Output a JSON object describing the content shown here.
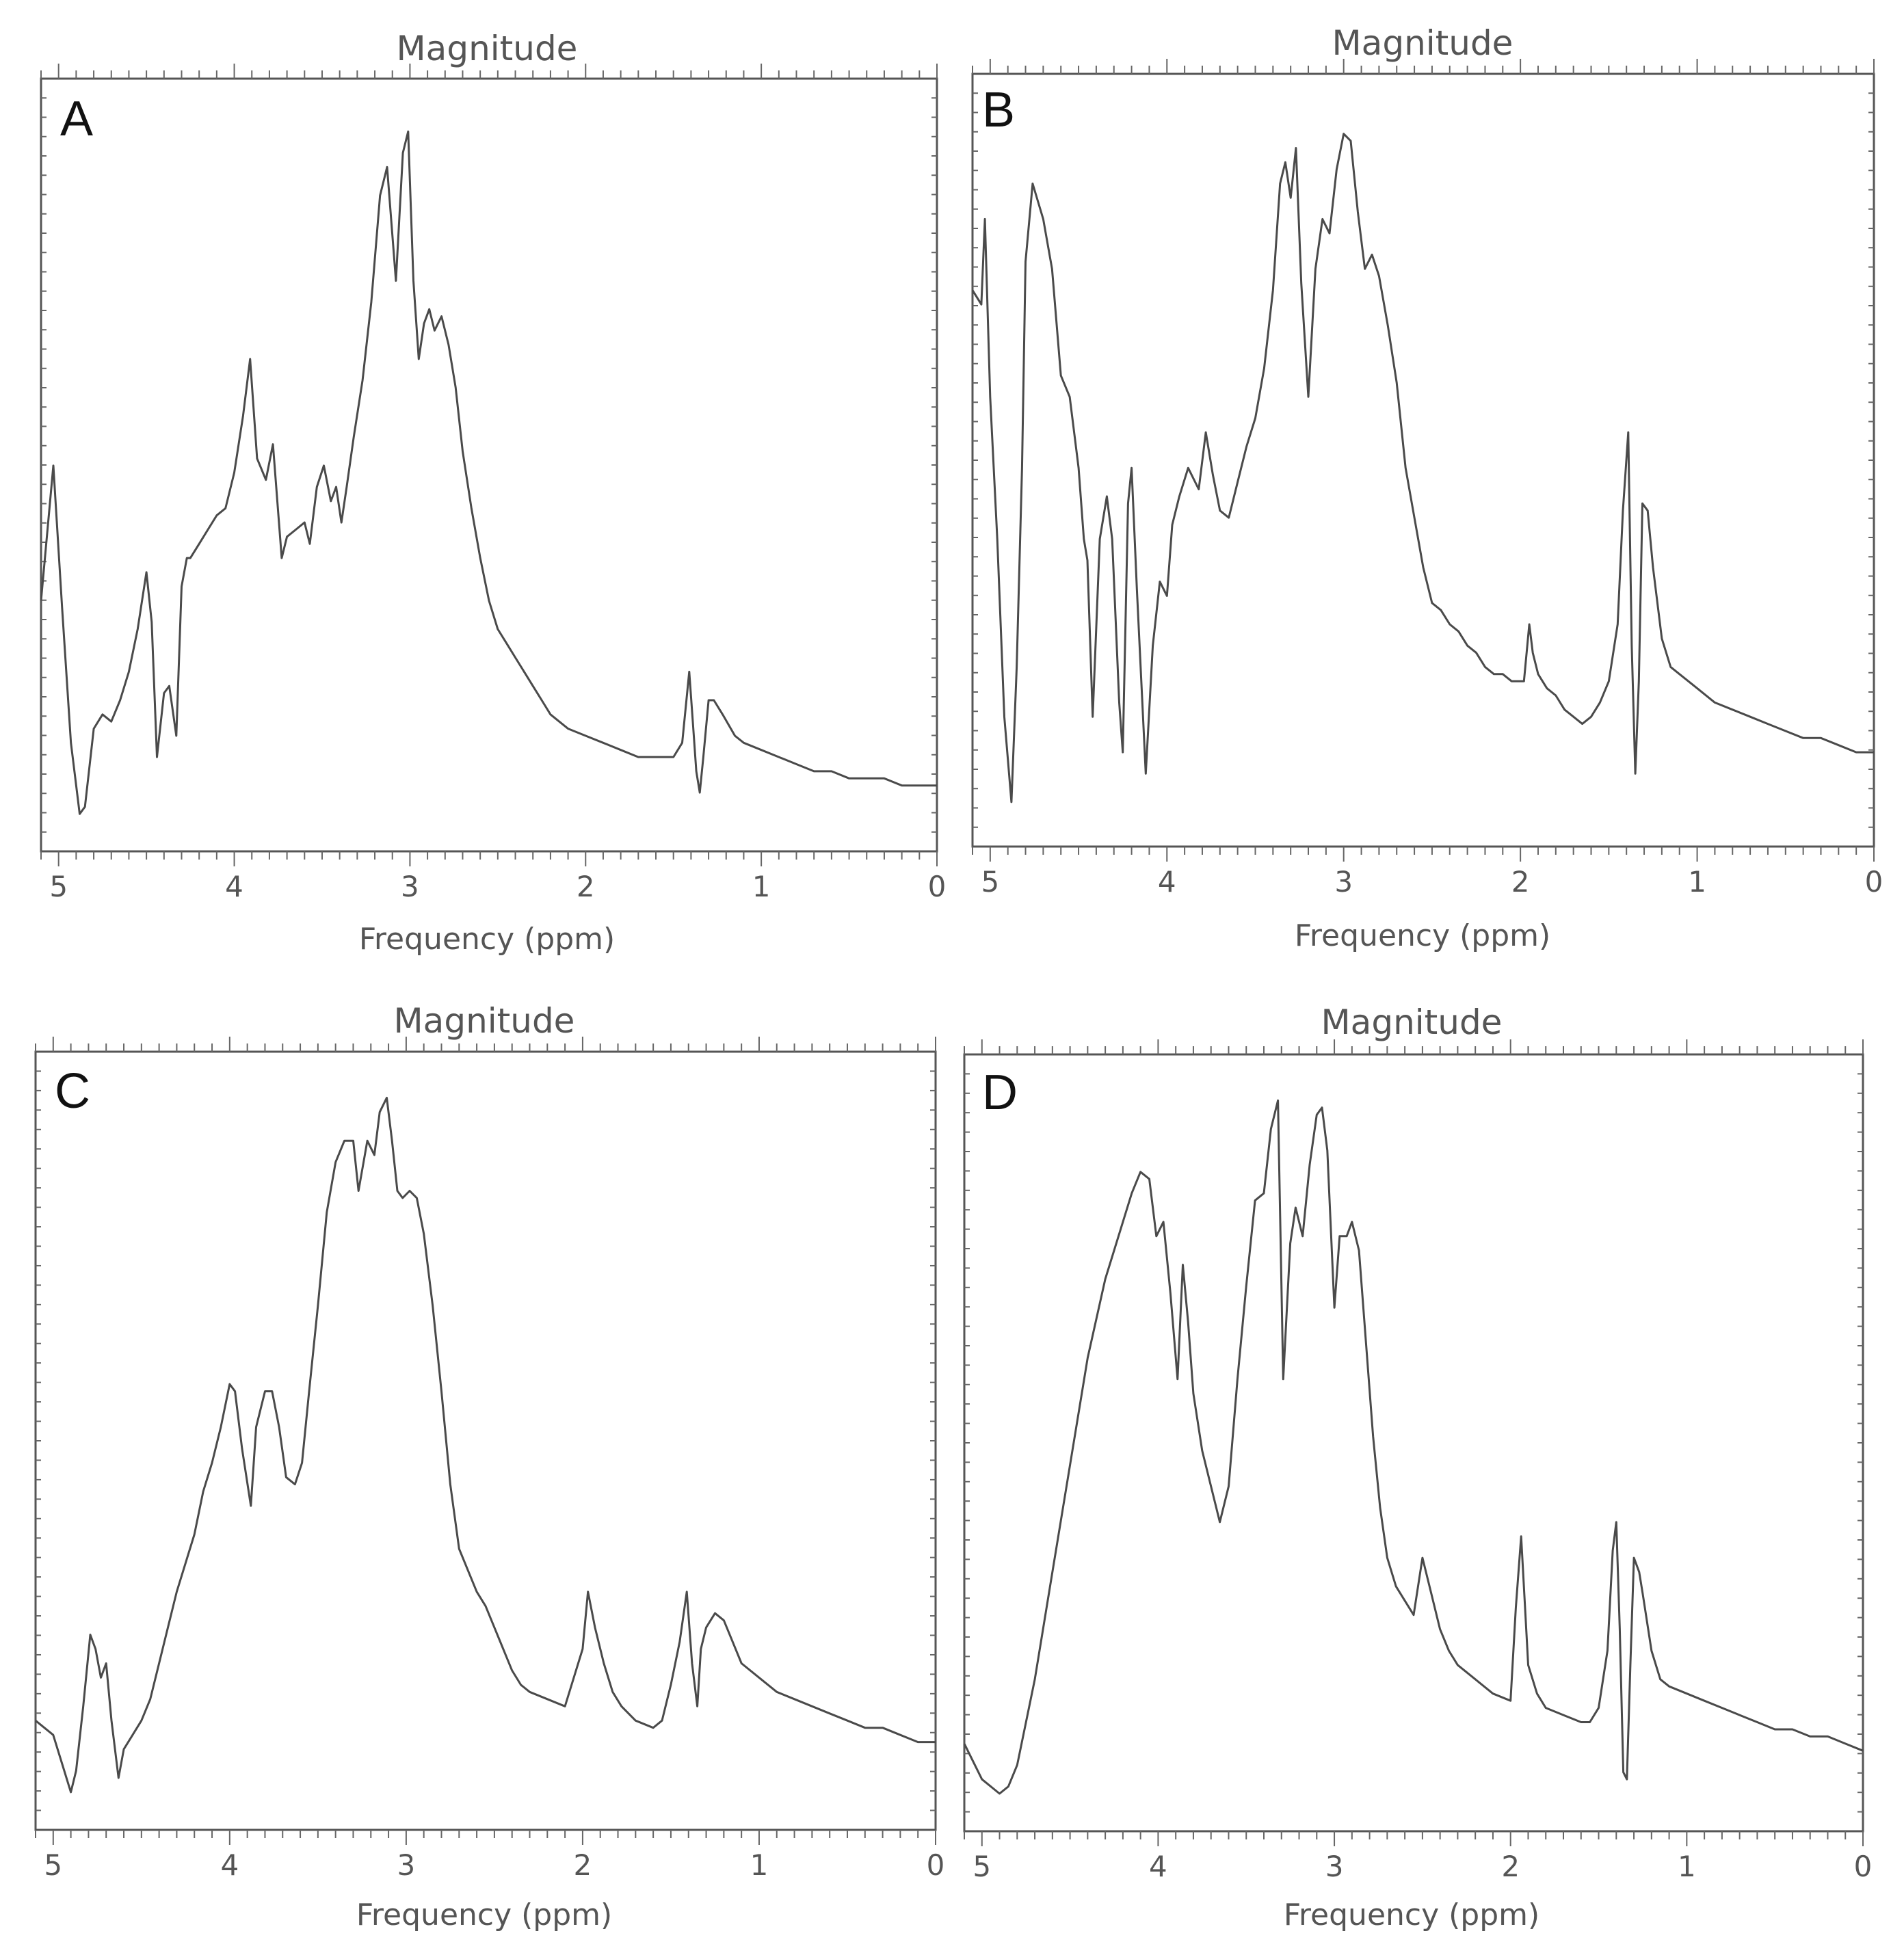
{
  "figure": {
    "panels": [
      {
        "letter": "A",
        "top_label": "Magnitude",
        "x_label": "Frequency (ppm)"
      },
      {
        "letter": "B",
        "top_label": "Magnitude",
        "x_label": "Frequency (ppm)"
      },
      {
        "letter": "C",
        "top_label": "Magnitude",
        "x_label": "Frequency (ppm)"
      },
      {
        "letter": "D",
        "top_label": "Magnitude",
        "x_label": "Frequency (ppm)"
      }
    ],
    "line_color": "#4a4a4a"
  },
  "chart_data": [
    {
      "type": "line",
      "panel": "A",
      "title": "Magnitude",
      "xlabel": "Frequency (ppm)",
      "ylabel": "",
      "xlim": [
        5.1,
        0
      ],
      "ylim": [
        0,
        1
      ],
      "x_ticks": [
        "5",
        "4",
        "3",
        "2",
        "1",
        "0"
      ],
      "grid": false,
      "series": [
        {
          "x": [
            5.1,
            5.03,
            4.98,
            4.93,
            4.88,
            4.85,
            4.8,
            4.75,
            4.7,
            4.65,
            4.6,
            4.55,
            4.5,
            4.47,
            4.44,
            4.4,
            4.37,
            4.33,
            4.3,
            4.27,
            4.25,
            4.2,
            4.15,
            4.1,
            4.05,
            4.0,
            3.95,
            3.91,
            3.87,
            3.82,
            3.78,
            3.73,
            3.7,
            3.65,
            3.6,
            3.57,
            3.53,
            3.49,
            3.45,
            3.42,
            3.39,
            3.36,
            3.32,
            3.27,
            3.22,
            3.17,
            3.13,
            3.08,
            3.04,
            3.01,
            2.98,
            2.95,
            2.92,
            2.89,
            2.86,
            2.82,
            2.78,
            2.74,
            2.7,
            2.65,
            2.6,
            2.55,
            2.5,
            2.45,
            2.4,
            2.35,
            2.3,
            2.25,
            2.2,
            2.15,
            2.1,
            2.0,
            1.9,
            1.8,
            1.7,
            1.6,
            1.55,
            1.5,
            1.45,
            1.41,
            1.39,
            1.37,
            1.35,
            1.33,
            1.3,
            1.27,
            1.22,
            1.15,
            1.1,
            1.0,
            0.9,
            0.8,
            0.7,
            0.6,
            0.5,
            0.4,
            0.3,
            0.2,
            0.1,
            0.05,
            0.0
          ],
          "y": [
            0.32,
            0.51,
            0.31,
            0.12,
            0.02,
            0.03,
            0.14,
            0.16,
            0.15,
            0.18,
            0.22,
            0.28,
            0.36,
            0.29,
            0.1,
            0.19,
            0.2,
            0.13,
            0.34,
            0.38,
            0.38,
            0.4,
            0.42,
            0.44,
            0.45,
            0.5,
            0.58,
            0.66,
            0.52,
            0.49,
            0.54,
            0.38,
            0.41,
            0.42,
            0.43,
            0.4,
            0.48,
            0.51,
            0.46,
            0.48,
            0.43,
            0.48,
            0.55,
            0.63,
            0.74,
            0.89,
            0.93,
            0.77,
            0.95,
            0.98,
            0.77,
            0.66,
            0.71,
            0.73,
            0.7,
            0.72,
            0.68,
            0.62,
            0.53,
            0.45,
            0.38,
            0.32,
            0.28,
            0.26,
            0.24,
            0.22,
            0.2,
            0.18,
            0.16,
            0.15,
            0.14,
            0.13,
            0.12,
            0.11,
            0.1,
            0.1,
            0.1,
            0.1,
            0.12,
            0.22,
            0.15,
            0.08,
            0.05,
            0.1,
            0.18,
            0.18,
            0.16,
            0.13,
            0.12,
            0.11,
            0.1,
            0.09,
            0.08,
            0.08,
            0.07,
            0.07,
            0.07,
            0.06,
            0.06,
            0.06,
            0.06
          ]
        }
      ]
    },
    {
      "type": "line",
      "panel": "B",
      "title": "Magnitude",
      "xlabel": "Frequency (ppm)",
      "ylabel": "",
      "xlim": [
        5.1,
        0
      ],
      "ylim": [
        0,
        1
      ],
      "x_ticks": [
        "5",
        "4",
        "3",
        "2",
        "1",
        "0"
      ],
      "grid": false,
      "series": [
        {
          "x": [
            5.1,
            5.05,
            5.03,
            5.0,
            4.96,
            4.92,
            4.88,
            4.85,
            4.82,
            4.8,
            4.76,
            4.7,
            4.65,
            4.6,
            4.55,
            4.5,
            4.47,
            4.45,
            4.42,
            4.38,
            4.34,
            4.31,
            4.27,
            4.25,
            4.22,
            4.2,
            4.17,
            4.12,
            4.08,
            4.04,
            4.0,
            3.97,
            3.93,
            3.88,
            3.82,
            3.78,
            3.74,
            3.7,
            3.65,
            3.6,
            3.55,
            3.5,
            3.45,
            3.4,
            3.36,
            3.33,
            3.3,
            3.27,
            3.24,
            3.2,
            3.16,
            3.12,
            3.08,
            3.04,
            3.0,
            2.96,
            2.92,
            2.88,
            2.84,
            2.8,
            2.75,
            2.7,
            2.65,
            2.6,
            2.55,
            2.5,
            2.45,
            2.4,
            2.35,
            2.3,
            2.25,
            2.2,
            2.15,
            2.1,
            2.05,
            1.98,
            1.95,
            1.93,
            1.9,
            1.85,
            1.8,
            1.75,
            1.7,
            1.65,
            1.6,
            1.55,
            1.5,
            1.45,
            1.42,
            1.39,
            1.37,
            1.35,
            1.33,
            1.31,
            1.28,
            1.25,
            1.2,
            1.15,
            1.1,
            1.0,
            0.9,
            0.8,
            0.7,
            0.6,
            0.5,
            0.4,
            0.3,
            0.2,
            0.1,
            0.05,
            0.0
          ],
          "y": [
            0.75,
            0.73,
            0.85,
            0.6,
            0.4,
            0.15,
            0.03,
            0.22,
            0.5,
            0.79,
            0.9,
            0.85,
            0.78,
            0.63,
            0.6,
            0.5,
            0.4,
            0.37,
            0.15,
            0.4,
            0.46,
            0.4,
            0.17,
            0.1,
            0.45,
            0.5,
            0.33,
            0.07,
            0.25,
            0.34,
            0.32,
            0.42,
            0.46,
            0.5,
            0.47,
            0.55,
            0.49,
            0.44,
            0.43,
            0.48,
            0.53,
            0.57,
            0.64,
            0.75,
            0.9,
            0.93,
            0.88,
            0.95,
            0.76,
            0.6,
            0.78,
            0.85,
            0.83,
            0.92,
            0.97,
            0.96,
            0.86,
            0.78,
            0.8,
            0.77,
            0.7,
            0.62,
            0.5,
            0.43,
            0.36,
            0.31,
            0.3,
            0.28,
            0.27,
            0.25,
            0.24,
            0.22,
            0.21,
            0.21,
            0.2,
            0.2,
            0.28,
            0.24,
            0.21,
            0.19,
            0.18,
            0.16,
            0.15,
            0.14,
            0.15,
            0.17,
            0.2,
            0.28,
            0.44,
            0.55,
            0.25,
            0.07,
            0.2,
            0.45,
            0.44,
            0.36,
            0.26,
            0.22,
            0.21,
            0.19,
            0.17,
            0.16,
            0.15,
            0.14,
            0.13,
            0.12,
            0.12,
            0.11,
            0.1,
            0.1,
            0.1
          ]
        }
      ]
    },
    {
      "type": "line",
      "panel": "C",
      "title": "Magnitude",
      "xlabel": "Frequency (ppm)",
      "ylabel": "",
      "xlim": [
        5.1,
        0
      ],
      "ylim": [
        0,
        1
      ],
      "x_ticks": [
        "5",
        "4",
        "3",
        "2",
        "1",
        "0"
      ],
      "grid": false,
      "series": [
        {
          "x": [
            5.1,
            5.0,
            4.95,
            4.9,
            4.87,
            4.83,
            4.79,
            4.76,
            4.73,
            4.7,
            4.67,
            4.63,
            4.6,
            4.55,
            4.5,
            4.45,
            4.4,
            4.35,
            4.3,
            4.25,
            4.2,
            4.15,
            4.1,
            4.05,
            4.0,
            3.97,
            3.93,
            3.88,
            3.85,
            3.8,
            3.76,
            3.72,
            3.68,
            3.63,
            3.59,
            3.55,
            3.5,
            3.45,
            3.4,
            3.35,
            3.3,
            3.27,
            3.22,
            3.18,
            3.15,
            3.11,
            3.08,
            3.05,
            3.02,
            2.98,
            2.94,
            2.9,
            2.85,
            2.8,
            2.75,
            2.7,
            2.65,
            2.6,
            2.55,
            2.5,
            2.45,
            2.4,
            2.35,
            2.3,
            2.2,
            2.1,
            2.0,
            1.97,
            1.93,
            1.88,
            1.83,
            1.78,
            1.7,
            1.6,
            1.55,
            1.5,
            1.45,
            1.41,
            1.38,
            1.35,
            1.33,
            1.3,
            1.25,
            1.2,
            1.15,
            1.1,
            1.0,
            0.9,
            0.8,
            0.7,
            0.6,
            0.5,
            0.4,
            0.3,
            0.2,
            0.1,
            0.0
          ],
          "y": [
            0.12,
            0.1,
            0.06,
            0.02,
            0.05,
            0.14,
            0.24,
            0.22,
            0.18,
            0.2,
            0.12,
            0.04,
            0.08,
            0.1,
            0.12,
            0.15,
            0.2,
            0.25,
            0.3,
            0.34,
            0.38,
            0.44,
            0.48,
            0.53,
            0.59,
            0.58,
            0.5,
            0.42,
            0.53,
            0.58,
            0.58,
            0.53,
            0.46,
            0.45,
            0.48,
            0.58,
            0.7,
            0.83,
            0.9,
            0.93,
            0.93,
            0.86,
            0.93,
            0.91,
            0.97,
            0.99,
            0.93,
            0.86,
            0.85,
            0.86,
            0.85,
            0.8,
            0.7,
            0.58,
            0.45,
            0.36,
            0.33,
            0.3,
            0.28,
            0.25,
            0.22,
            0.19,
            0.17,
            0.16,
            0.15,
            0.14,
            0.22,
            0.3,
            0.25,
            0.2,
            0.16,
            0.14,
            0.12,
            0.11,
            0.12,
            0.17,
            0.23,
            0.3,
            0.2,
            0.14,
            0.22,
            0.25,
            0.27,
            0.26,
            0.23,
            0.2,
            0.18,
            0.16,
            0.15,
            0.14,
            0.13,
            0.12,
            0.11,
            0.11,
            0.1,
            0.09,
            0.09
          ]
        }
      ]
    },
    {
      "type": "line",
      "panel": "D",
      "title": "Magnitude",
      "xlabel": "Frequency (ppm)",
      "ylabel": "",
      "xlim": [
        5.1,
        0
      ],
      "ylim": [
        0,
        1
      ],
      "x_ticks": [
        "5",
        "4",
        "3",
        "2",
        "1",
        "0"
      ],
      "grid": false,
      "series": [
        {
          "x": [
            5.1,
            5.0,
            4.9,
            4.85,
            4.8,
            4.7,
            4.6,
            4.5,
            4.4,
            4.3,
            4.2,
            4.15,
            4.1,
            4.05,
            4.01,
            3.97,
            3.93,
            3.89,
            3.86,
            3.83,
            3.8,
            3.75,
            3.7,
            3.65,
            3.6,
            3.55,
            3.5,
            3.45,
            3.4,
            3.36,
            3.32,
            3.29,
            3.25,
            3.22,
            3.18,
            3.14,
            3.1,
            3.07,
            3.04,
            3.0,
            2.97,
            2.93,
            2.9,
            2.86,
            2.82,
            2.78,
            2.74,
            2.7,
            2.65,
            2.6,
            2.55,
            2.5,
            2.45,
            2.4,
            2.35,
            2.3,
            2.2,
            2.1,
            2.0,
            1.97,
            1.94,
            1.9,
            1.85,
            1.8,
            1.7,
            1.6,
            1.55,
            1.5,
            1.45,
            1.42,
            1.4,
            1.38,
            1.36,
            1.34,
            1.32,
            1.3,
            1.27,
            1.25,
            1.2,
            1.15,
            1.1,
            1.0,
            0.9,
            0.8,
            0.7,
            0.6,
            0.5,
            0.4,
            0.3,
            0.2,
            0.1,
            0.0
          ],
          "y": [
            0.09,
            0.04,
            0.02,
            0.03,
            0.06,
            0.18,
            0.33,
            0.48,
            0.63,
            0.74,
            0.82,
            0.86,
            0.89,
            0.88,
            0.8,
            0.82,
            0.72,
            0.6,
            0.76,
            0.68,
            0.58,
            0.5,
            0.45,
            0.4,
            0.45,
            0.6,
            0.73,
            0.85,
            0.86,
            0.95,
            0.99,
            0.6,
            0.79,
            0.84,
            0.8,
            0.9,
            0.97,
            0.98,
            0.92,
            0.7,
            0.8,
            0.8,
            0.82,
            0.78,
            0.65,
            0.52,
            0.42,
            0.35,
            0.31,
            0.29,
            0.27,
            0.35,
            0.3,
            0.25,
            0.22,
            0.2,
            0.18,
            0.16,
            0.15,
            0.28,
            0.38,
            0.2,
            0.16,
            0.14,
            0.13,
            0.12,
            0.12,
            0.14,
            0.22,
            0.36,
            0.4,
            0.25,
            0.05,
            0.04,
            0.2,
            0.35,
            0.33,
            0.3,
            0.22,
            0.18,
            0.17,
            0.16,
            0.15,
            0.14,
            0.13,
            0.12,
            0.11,
            0.11,
            0.1,
            0.1,
            0.09,
            0.08
          ]
        }
      ]
    }
  ]
}
